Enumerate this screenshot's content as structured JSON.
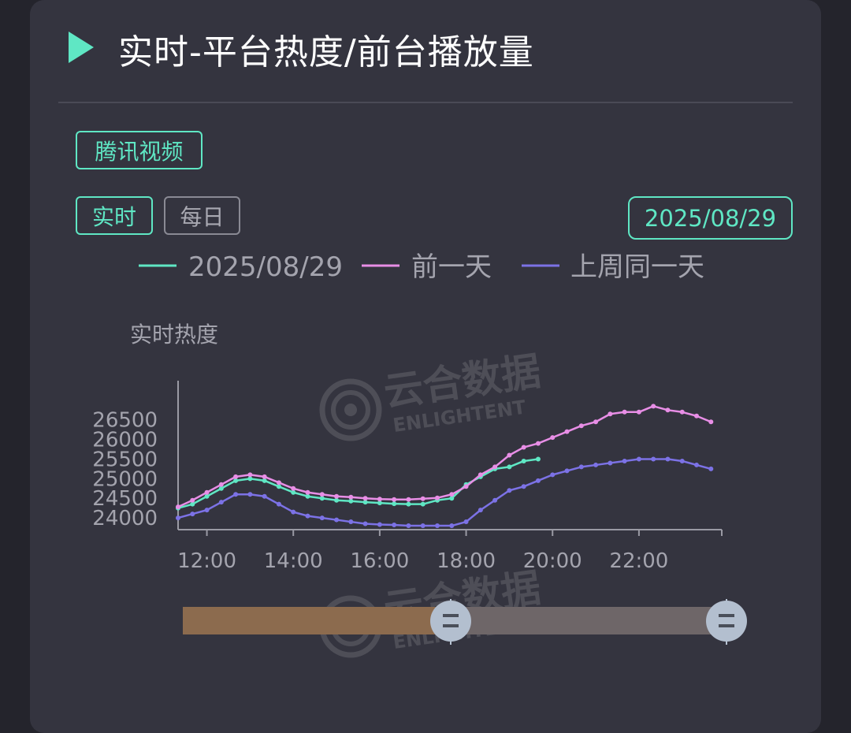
{
  "header": {
    "title": "实时-平台热度/前台播放量",
    "icon": "play-triangle-icon",
    "accent": "#5fe7c4"
  },
  "filters": {
    "platform": "腾讯视频",
    "mode_realtime": "实时",
    "mode_daily": "每日",
    "date": "2025/08/29"
  },
  "watermark": {
    "cn": "云合数据",
    "en": "ENLIGHTENT"
  },
  "chart_data": {
    "type": "line",
    "title": "",
    "xlabel": "",
    "ylabel": "实时热度",
    "x_ticks": [
      "12:00",
      "14:00",
      "16:00",
      "18:00",
      "20:00",
      "22:00"
    ],
    "y_ticks": [
      24000,
      24500,
      25000,
      25500,
      26000,
      26500
    ],
    "xlim": [
      "11:20",
      "23:55"
    ],
    "ylim": [
      23700,
      27500
    ],
    "legend_position": "top",
    "grid": false,
    "x": [
      "11:20",
      "11:40",
      "12:00",
      "12:20",
      "12:40",
      "13:00",
      "13:20",
      "13:40",
      "14:00",
      "14:20",
      "14:40",
      "15:00",
      "15:20",
      "15:40",
      "16:00",
      "16:20",
      "16:40",
      "17:00",
      "17:20",
      "17:40",
      "18:00",
      "18:20",
      "18:40",
      "19:00",
      "19:20",
      "19:40",
      "20:00",
      "20:20",
      "20:40",
      "21:00",
      "21:20",
      "21:40",
      "22:00",
      "22:20",
      "22:40",
      "23:00",
      "23:20",
      "23:40"
    ],
    "series": [
      {
        "name": "2025/08/29",
        "color": "#5fe7c4",
        "values": [
          24250,
          24350,
          24550,
          24750,
          24950,
          25000,
          24950,
          24800,
          24650,
          24550,
          24500,
          24450,
          24430,
          24400,
          24380,
          24360,
          24350,
          24350,
          24450,
          24500,
          24850,
          25050,
          25250,
          25300,
          25450,
          25500,
          null,
          null,
          null,
          null,
          null,
          null,
          null,
          null,
          null,
          null,
          null,
          null
        ]
      },
      {
        "name": "前一天",
        "color": "#e88ee6",
        "values": [
          24280,
          24450,
          24650,
          24850,
          25050,
          25100,
          25050,
          24900,
          24750,
          24650,
          24600,
          24550,
          24530,
          24500,
          24480,
          24470,
          24470,
          24490,
          24510,
          24600,
          24800,
          25100,
          25300,
          25600,
          25800,
          25900,
          26050,
          26200,
          26350,
          26450,
          26650,
          26700,
          26700,
          26850,
          26750,
          26700,
          26600,
          26450
        ]
      },
      {
        "name": "上周同一天",
        "color": "#7c72e6",
        "values": [
          24000,
          24100,
          24200,
          24400,
          24600,
          24600,
          24550,
          24350,
          24150,
          24050,
          24000,
          23950,
          23900,
          23850,
          23830,
          23820,
          23800,
          23800,
          23800,
          23800,
          23900,
          24200,
          24450,
          24700,
          24800,
          24950,
          25100,
          25200,
          25300,
          25350,
          25400,
          25450,
          25500,
          25500,
          25500,
          25450,
          25350,
          25250
        ]
      }
    ],
    "slider_range": [
      0.5,
      1.0
    ]
  }
}
